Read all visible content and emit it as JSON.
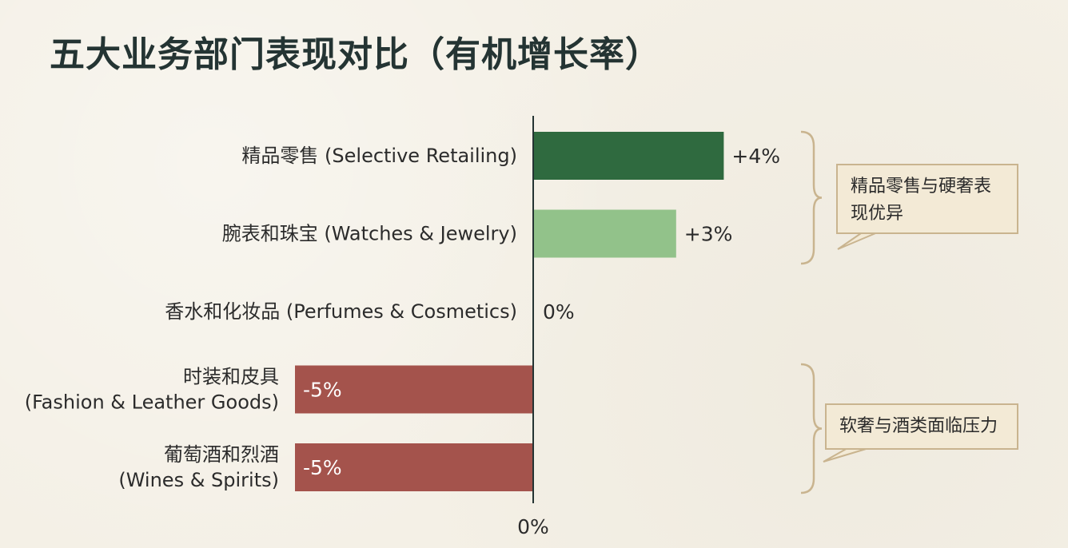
{
  "title": "五大业务部门表现对比（有机增长率）",
  "chart_data": {
    "type": "bar",
    "orientation": "horizontal",
    "categories": [
      [
        "精品零售 (Selective Retailing)"
      ],
      [
        "腕表和珠宝 (Watches & Jewelry)"
      ],
      [
        "香水和化妆品 (Perfumes & Cosmetics)"
      ],
      [
        "时装和皮具",
        "(Fashion & Leather Goods)"
      ],
      [
        "葡萄酒和烈酒",
        "(Wines & Spirits)"
      ]
    ],
    "values": [
      4,
      3,
      0,
      -5,
      -5
    ],
    "value_labels": [
      "+4%",
      "+3%",
      "0%",
      "-5%",
      "-5%"
    ],
    "colors": [
      "#2f6a3f",
      "#92c28a",
      "#92c28a",
      "#a4534c",
      "#a4534c"
    ],
    "axis_zero_label": "0%",
    "xlim": [
      -5,
      4
    ],
    "annotations": [
      {
        "text": "精品零售与硬奢表现优异",
        "lines": [
          "精品零售与硬奢表",
          "现优异"
        ],
        "applies_to": [
          0,
          1
        ]
      },
      {
        "text": "软奢与酒类面临压力",
        "lines": [
          "软奢与酒类面临压力"
        ],
        "applies_to": [
          3,
          4
        ]
      }
    ]
  }
}
